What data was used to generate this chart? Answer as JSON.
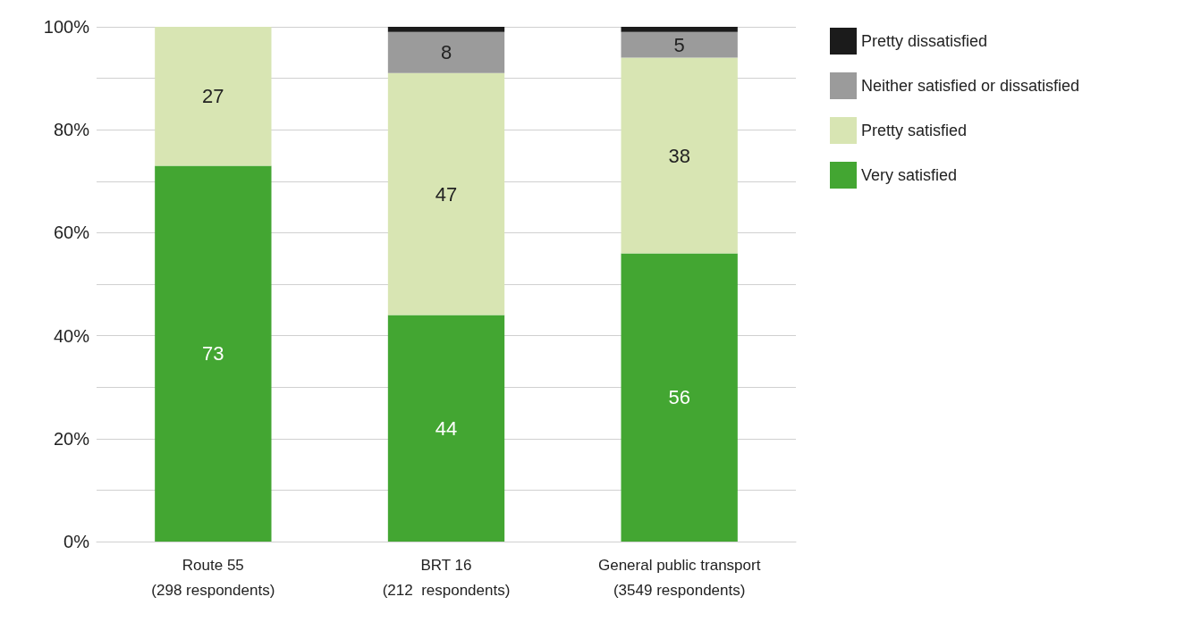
{
  "chart_data": {
    "type": "bar",
    "stacked": true,
    "categories": [
      "Route 55\n(298 respondents)",
      "BRT 16\n(212  respondents)",
      "General public transport\n(3549 respondents)"
    ],
    "series": [
      {
        "name": "Very satisfied",
        "color": "#43a632",
        "values": [
          73,
          44,
          56
        ],
        "value_labels": [
          "73",
          "44",
          "56"
        ]
      },
      {
        "name": "Pretty satisfied",
        "color": "#d8e5b3",
        "values": [
          27,
          47,
          38
        ],
        "value_labels": [
          "27",
          "47",
          "38"
        ]
      },
      {
        "name": "Neither satisfied or dissatisfied",
        "color": "#9b9b9b",
        "values": [
          0,
          8,
          5
        ],
        "value_labels": [
          null,
          "8",
          "5"
        ]
      },
      {
        "name": "Pretty dissatisfied",
        "color": "#1b1b1b",
        "values": [
          0,
          1,
          1
        ],
        "value_labels": [
          null,
          null,
          null
        ]
      }
    ],
    "ylim": [
      0,
      100
    ],
    "yticks": [
      {
        "value": 0,
        "label": "0%"
      },
      {
        "value": 10,
        "label": null
      },
      {
        "value": 20,
        "label": "20%"
      },
      {
        "value": 30,
        "label": null
      },
      {
        "value": 40,
        "label": "40%"
      },
      {
        "value": 50,
        "label": null
      },
      {
        "value": 60,
        "label": "60%"
      },
      {
        "value": 70,
        "label": null
      },
      {
        "value": 80,
        "label": "80%"
      },
      {
        "value": 90,
        "label": null
      },
      {
        "value": 100,
        "label": "100%"
      }
    ],
    "grid": "y",
    "legend": "top right"
  }
}
